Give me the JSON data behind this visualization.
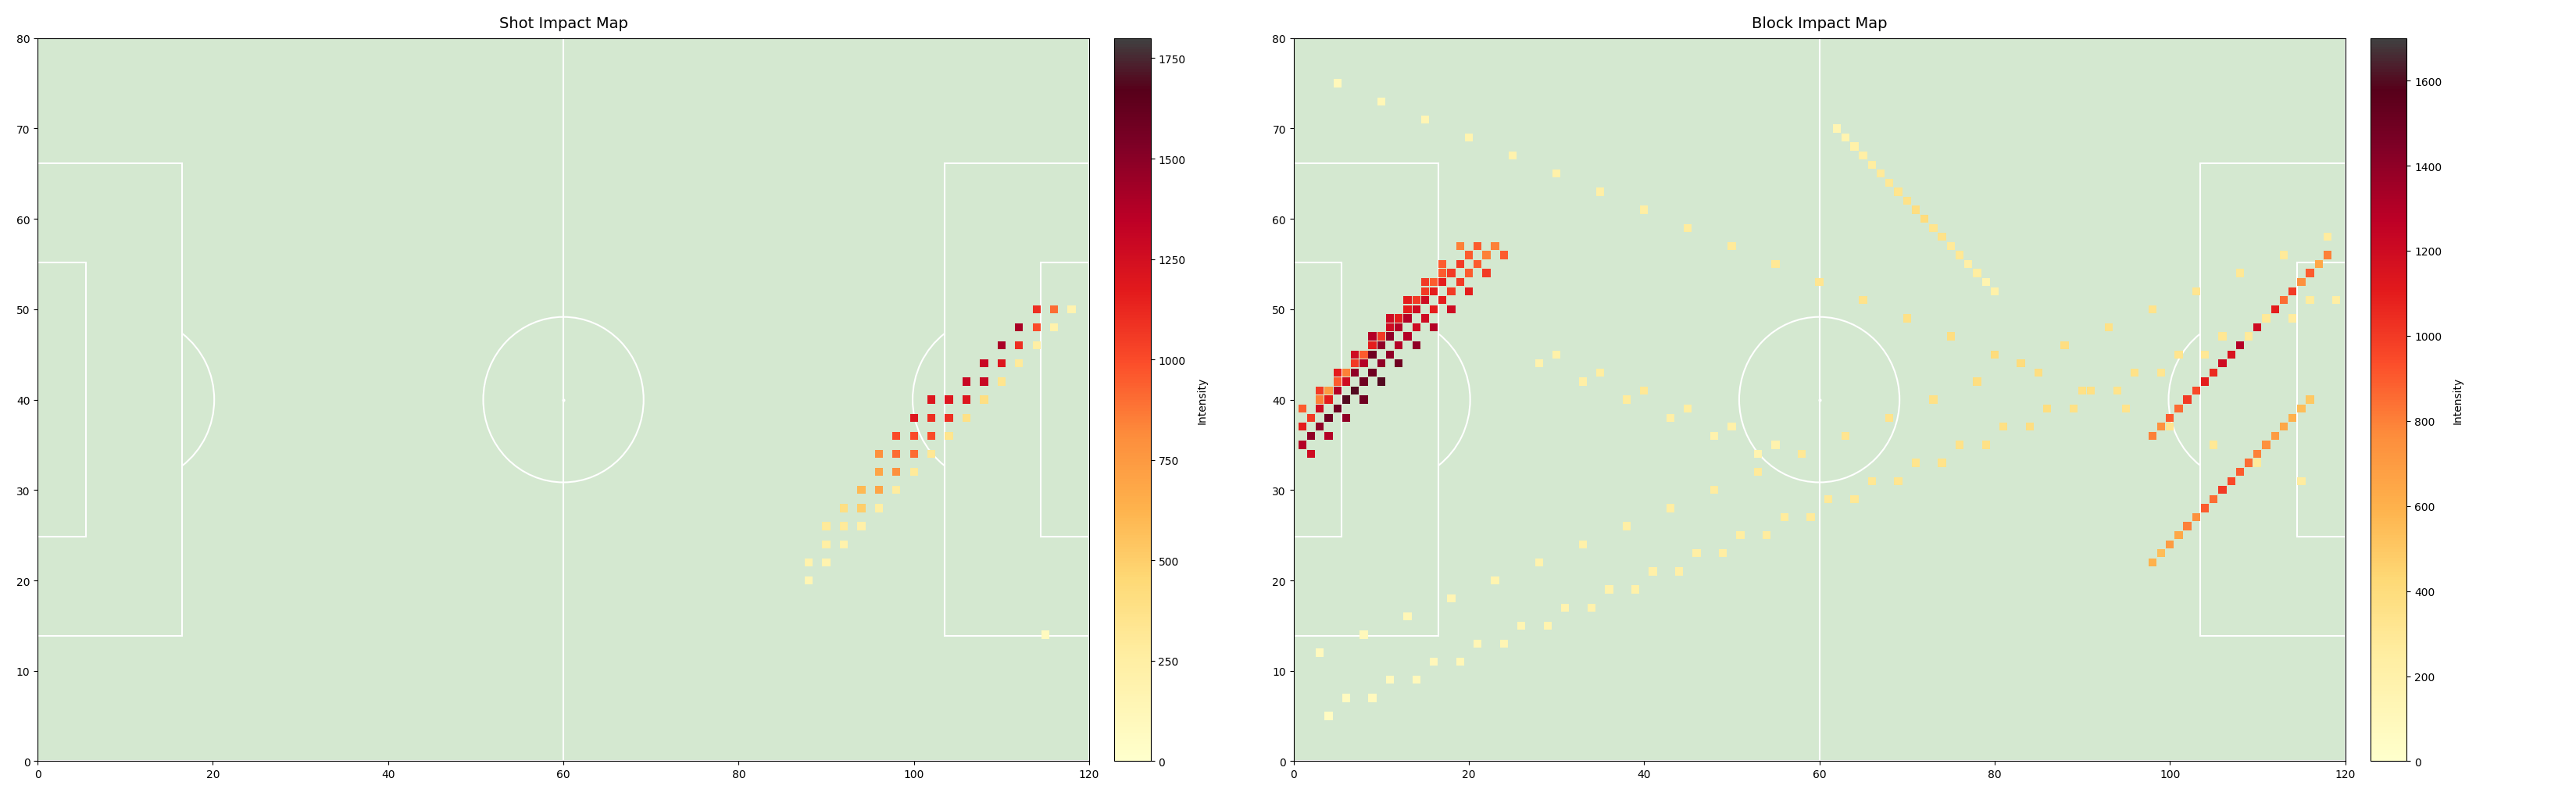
{
  "shot_title": "Shot Impact Map",
  "block_title": "Block Impact Map",
  "colorbar_label": "Intensity",
  "field_color": "#d4e8d0",
  "line_color": "white",
  "shot_vmax": 1800,
  "block_vmax": 1700,
  "shot_colorbar_ticks": [
    0,
    250,
    500,
    750,
    1000,
    1250,
    1500,
    1750
  ],
  "block_colorbar_ticks": [
    0,
    200,
    400,
    600,
    800,
    1000,
    1200,
    1400,
    1600
  ],
  "colormap_colors": [
    "#ffffcc",
    "#ffeda0",
    "#fed976",
    "#feb24c",
    "#fd8d3c",
    "#fc4e2a",
    "#e31a1c",
    "#bd0026",
    "#800026",
    "#4d0015",
    "#3d3535"
  ],
  "shot_points": {
    "x": [
      88,
      90,
      92,
      94,
      96,
      98,
      100,
      102,
      104,
      106,
      108,
      110,
      112,
      114,
      116,
      118,
      88,
      90,
      92,
      94,
      96,
      98,
      100,
      102,
      104,
      106,
      108,
      110,
      112,
      114,
      116,
      90,
      92,
      94,
      96,
      98,
      100,
      102,
      104,
      106,
      108,
      110,
      112,
      114,
      116,
      90,
      92,
      94,
      96,
      98,
      100,
      102,
      104,
      106,
      108,
      110,
      112,
      114,
      92,
      94,
      96,
      98,
      100,
      102,
      104,
      106,
      108,
      110,
      112,
      92,
      94,
      96,
      98,
      100,
      102,
      104,
      106,
      108,
      110,
      94,
      96,
      98,
      100,
      102,
      104,
      106,
      108,
      94,
      96,
      98,
      100,
      102,
      104,
      106,
      96,
      98,
      100,
      102,
      104,
      96,
      98,
      100,
      102,
      98,
      100,
      115
    ],
    "y": [
      20,
      22,
      24,
      26,
      28,
      30,
      32,
      34,
      36,
      38,
      40,
      42,
      44,
      46,
      48,
      50,
      22,
      24,
      26,
      28,
      30,
      32,
      34,
      36,
      38,
      40,
      42,
      44,
      46,
      48,
      50,
      24,
      26,
      28,
      30,
      32,
      34,
      36,
      38,
      40,
      42,
      44,
      46,
      48,
      50,
      26,
      28,
      30,
      32,
      34,
      36,
      38,
      40,
      42,
      44,
      46,
      48,
      50,
      28,
      30,
      32,
      34,
      36,
      38,
      40,
      42,
      44,
      46,
      48,
      28,
      30,
      32,
      34,
      36,
      38,
      40,
      42,
      44,
      46,
      28,
      30,
      32,
      34,
      36,
      38,
      40,
      42,
      30,
      32,
      34,
      36,
      38,
      40,
      42,
      32,
      34,
      36,
      38,
      40,
      34,
      36,
      38,
      40,
      36,
      38,
      14
    ],
    "intensity": [
      150,
      180,
      200,
      220,
      250,
      280,
      300,
      320,
      350,
      380,
      400,
      350,
      300,
      250,
      200,
      180,
      200,
      250,
      300,
      350,
      400,
      500,
      600,
      700,
      800,
      900,
      1000,
      900,
      800,
      700,
      600,
      250,
      300,
      400,
      500,
      600,
      700,
      800,
      900,
      1000,
      1100,
      1200,
      1100,
      1000,
      900,
      300,
      400,
      500,
      600,
      700,
      800,
      900,
      1000,
      1100,
      1200,
      1300,
      1200,
      1100,
      350,
      500,
      600,
      700,
      800,
      900,
      1000,
      1100,
      1200,
      1300,
      1400,
      400,
      600,
      700,
      800,
      900,
      1000,
      1100,
      1200,
      1300,
      1400,
      500,
      700,
      800,
      900,
      1000,
      1100,
      1200,
      1300,
      600,
      800,
      900,
      1000,
      1100,
      1200,
      1300,
      700,
      900,
      1000,
      1100,
      1200,
      800,
      1000,
      1100,
      1200,
      1000,
      1200,
      80
    ]
  },
  "block_points": {
    "x": [
      2,
      4,
      6,
      8,
      10,
      12,
      14,
      16,
      18,
      20,
      22,
      1,
      3,
      5,
      7,
      9,
      11,
      13,
      15,
      17,
      19,
      21,
      23,
      2,
      4,
      6,
      8,
      10,
      12,
      14,
      16,
      18,
      20,
      22,
      24,
      1,
      3,
      5,
      7,
      9,
      11,
      13,
      15,
      17,
      19,
      21,
      2,
      4,
      6,
      8,
      10,
      12,
      14,
      16,
      18,
      20,
      1,
      3,
      5,
      7,
      9,
      11,
      13,
      15,
      17,
      19,
      3,
      5,
      7,
      9,
      11,
      13,
      15,
      17,
      4,
      6,
      8,
      10,
      12,
      14,
      16,
      30,
      35,
      40,
      45,
      50,
      55,
      28,
      33,
      38,
      43,
      48,
      53,
      62,
      64,
      66,
      68,
      70,
      72,
      74,
      76,
      78,
      80,
      63,
      65,
      67,
      69,
      71,
      73,
      75,
      77,
      79,
      98,
      100,
      102,
      104,
      106,
      108,
      110,
      112,
      114,
      116,
      118,
      99,
      101,
      103,
      105,
      107,
      109,
      111,
      113,
      115,
      117,
      98,
      100,
      102,
      104,
      106,
      108,
      110,
      112,
      114,
      116,
      99,
      101,
      103,
      105,
      107,
      109,
      111,
      113,
      115,
      5,
      10,
      15,
      20,
      25,
      30,
      35,
      40,
      45,
      50,
      55,
      60,
      65,
      70,
      75,
      80,
      85,
      90,
      95,
      100,
      105,
      110,
      115,
      3,
      8,
      13,
      18,
      23,
      28,
      33,
      38,
      43,
      48,
      53,
      58,
      63,
      68,
      73,
      78,
      83,
      88,
      93,
      98,
      103,
      108,
      113,
      118,
      6,
      11,
      16,
      21,
      26,
      31,
      36,
      41,
      46,
      51,
      56,
      61,
      66,
      71,
      76,
      81,
      86,
      91,
      96,
      101,
      106,
      111,
      116,
      4,
      9,
      14,
      19,
      24,
      29,
      34,
      39,
      44,
      49,
      54,
      59,
      64,
      69,
      74,
      79,
      84,
      89,
      94,
      99,
      104,
      109,
      114,
      119
    ],
    "y": [
      36,
      38,
      40,
      42,
      44,
      46,
      48,
      50,
      52,
      54,
      56,
      35,
      37,
      39,
      41,
      43,
      45,
      47,
      49,
      51,
      53,
      55,
      57,
      34,
      36,
      38,
      40,
      42,
      44,
      46,
      48,
      50,
      52,
      54,
      56,
      37,
      39,
      41,
      43,
      45,
      47,
      49,
      51,
      53,
      55,
      57,
      38,
      40,
      42,
      44,
      46,
      48,
      50,
      52,
      54,
      56,
      39,
      41,
      43,
      45,
      47,
      49,
      51,
      53,
      55,
      57,
      40,
      42,
      44,
      46,
      48,
      50,
      52,
      54,
      41,
      43,
      45,
      47,
      49,
      51,
      53,
      45,
      43,
      41,
      39,
      37,
      35,
      44,
      42,
      40,
      38,
      36,
      34,
      70,
      68,
      66,
      64,
      62,
      60,
      58,
      56,
      54,
      52,
      69,
      67,
      65,
      63,
      61,
      59,
      57,
      55,
      53,
      36,
      38,
      40,
      42,
      44,
      46,
      48,
      50,
      52,
      54,
      56,
      37,
      39,
      41,
      43,
      45,
      47,
      49,
      51,
      53,
      55,
      22,
      24,
      26,
      28,
      30,
      32,
      34,
      36,
      38,
      40,
      23,
      25,
      27,
      29,
      31,
      33,
      35,
      37,
      39,
      75,
      73,
      71,
      69,
      67,
      65,
      63,
      61,
      59,
      57,
      55,
      53,
      51,
      49,
      47,
      45,
      43,
      41,
      39,
      37,
      35,
      33,
      31,
      12,
      14,
      16,
      18,
      20,
      22,
      24,
      26,
      28,
      30,
      32,
      34,
      36,
      38,
      40,
      42,
      44,
      46,
      48,
      50,
      52,
      54,
      56,
      58,
      7,
      9,
      11,
      13,
      15,
      17,
      19,
      21,
      23,
      25,
      27,
      29,
      31,
      33,
      35,
      37,
      39,
      41,
      43,
      45,
      47,
      49,
      51,
      5,
      7,
      9,
      11,
      13,
      15,
      17,
      19,
      21,
      23,
      25,
      27,
      29,
      31,
      33,
      35,
      37,
      39,
      41,
      43,
      45,
      47,
      49,
      51
    ],
    "intensity": [
      1400,
      1500,
      1600,
      1500,
      1400,
      1300,
      1200,
      1100,
      1000,
      900,
      800,
      1300,
      1400,
      1500,
      1600,
      1500,
      1400,
      1300,
      1200,
      1100,
      1000,
      900,
      800,
      1200,
      1300,
      1400,
      1500,
      1600,
      1500,
      1400,
      1300,
      1200,
      1100,
      1000,
      900,
      1100,
      1200,
      1300,
      1400,
      1500,
      1400,
      1300,
      1200,
      1100,
      1000,
      900,
      1000,
      1100,
      1200,
      1300,
      1400,
      1300,
      1200,
      1100,
      1000,
      900,
      900,
      1000,
      1100,
      1200,
      1300,
      1200,
      1100,
      1000,
      900,
      800,
      800,
      900,
      1000,
      1100,
      1200,
      1100,
      1000,
      900,
      700,
      800,
      900,
      1000,
      1100,
      1000,
      900,
      200,
      250,
      300,
      250,
      200,
      180,
      180,
      220,
      270,
      220,
      180,
      160,
      150,
      200,
      250,
      300,
      350,
      400,
      350,
      300,
      250,
      200,
      160,
      220,
      280,
      330,
      380,
      330,
      280,
      220,
      160,
      800,
      900,
      1000,
      1100,
      1200,
      1300,
      1200,
      1100,
      1000,
      900,
      800,
      750,
      850,
      950,
      1050,
      1150,
      1050,
      950,
      850,
      750,
      650,
      600,
      700,
      800,
      900,
      1000,
      900,
      800,
      700,
      600,
      500,
      550,
      650,
      750,
      850,
      950,
      850,
      750,
      650,
      550,
      100,
      120,
      140,
      160,
      180,
      200,
      220,
      240,
      260,
      280,
      300,
      320,
      340,
      360,
      380,
      400,
      380,
      360,
      340,
      320,
      300,
      280,
      260,
      80,
      100,
      120,
      140,
      160,
      180,
      200,
      220,
      240,
      260,
      280,
      300,
      320,
      340,
      360,
      380,
      400,
      380,
      360,
      340,
      320,
      300,
      280,
      260,
      70,
      90,
      110,
      130,
      150,
      170,
      190,
      210,
      230,
      250,
      270,
      290,
      310,
      330,
      350,
      370,
      390,
      370,
      350,
      330,
      310,
      290,
      270,
      60,
      80,
      100,
      120,
      140,
      160,
      180,
      200,
      220,
      240,
      260,
      280,
      300,
      320,
      340,
      360,
      380,
      360,
      340,
      320,
      300,
      280,
      260,
      240
    ]
  }
}
